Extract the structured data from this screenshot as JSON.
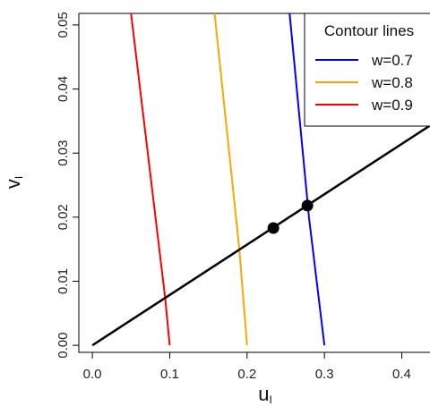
{
  "chart_data": {
    "type": "line",
    "legend": {
      "title": "Contour lines",
      "position": "top-right"
    },
    "xlabel": "u",
    "xlabel_sub": "I",
    "ylabel": "v",
    "ylabel_sub": "I",
    "xlim": [
      -0.0175,
      0.4365
    ],
    "ylim": [
      -0.0011,
      0.0518
    ],
    "x_ticks": [
      0.0,
      0.1,
      0.2,
      0.3,
      0.4
    ],
    "x_tick_labels": [
      "0.0",
      "0.1",
      "0.2",
      "0.3",
      "0.4"
    ],
    "y_ticks": [
      0.0,
      0.01,
      0.02,
      0.03,
      0.04,
      0.05
    ],
    "y_tick_labels": [
      "0.00",
      "0.01",
      "0.02",
      "0.03",
      "0.04",
      "0.05"
    ],
    "grid": false,
    "series": [
      {
        "name": "w=0.7",
        "color": "#0000ff",
        "points": [
          [
            0.3,
            0.0
          ],
          [
            0.28,
            0.02
          ],
          [
            0.255,
            0.0518
          ]
        ]
      },
      {
        "name": "w=0.8",
        "color": "#ffa500",
        "points": [
          [
            0.2,
            0.0
          ],
          [
            0.19,
            0.015
          ],
          [
            0.158,
            0.0518
          ]
        ]
      },
      {
        "name": "w=0.9",
        "color": "#ff0000",
        "points": [
          [
            0.1,
            0.0
          ],
          [
            0.094,
            0.0075
          ],
          [
            0.05,
            0.0518
          ]
        ]
      }
    ],
    "ray": {
      "color": "#000000",
      "points": [
        [
          0.0,
          0.0
        ],
        [
          0.4365,
          0.0343
        ]
      ]
    },
    "markers": [
      {
        "x": 0.234,
        "y": 0.0183
      },
      {
        "x": 0.278,
        "y": 0.0218
      }
    ]
  }
}
